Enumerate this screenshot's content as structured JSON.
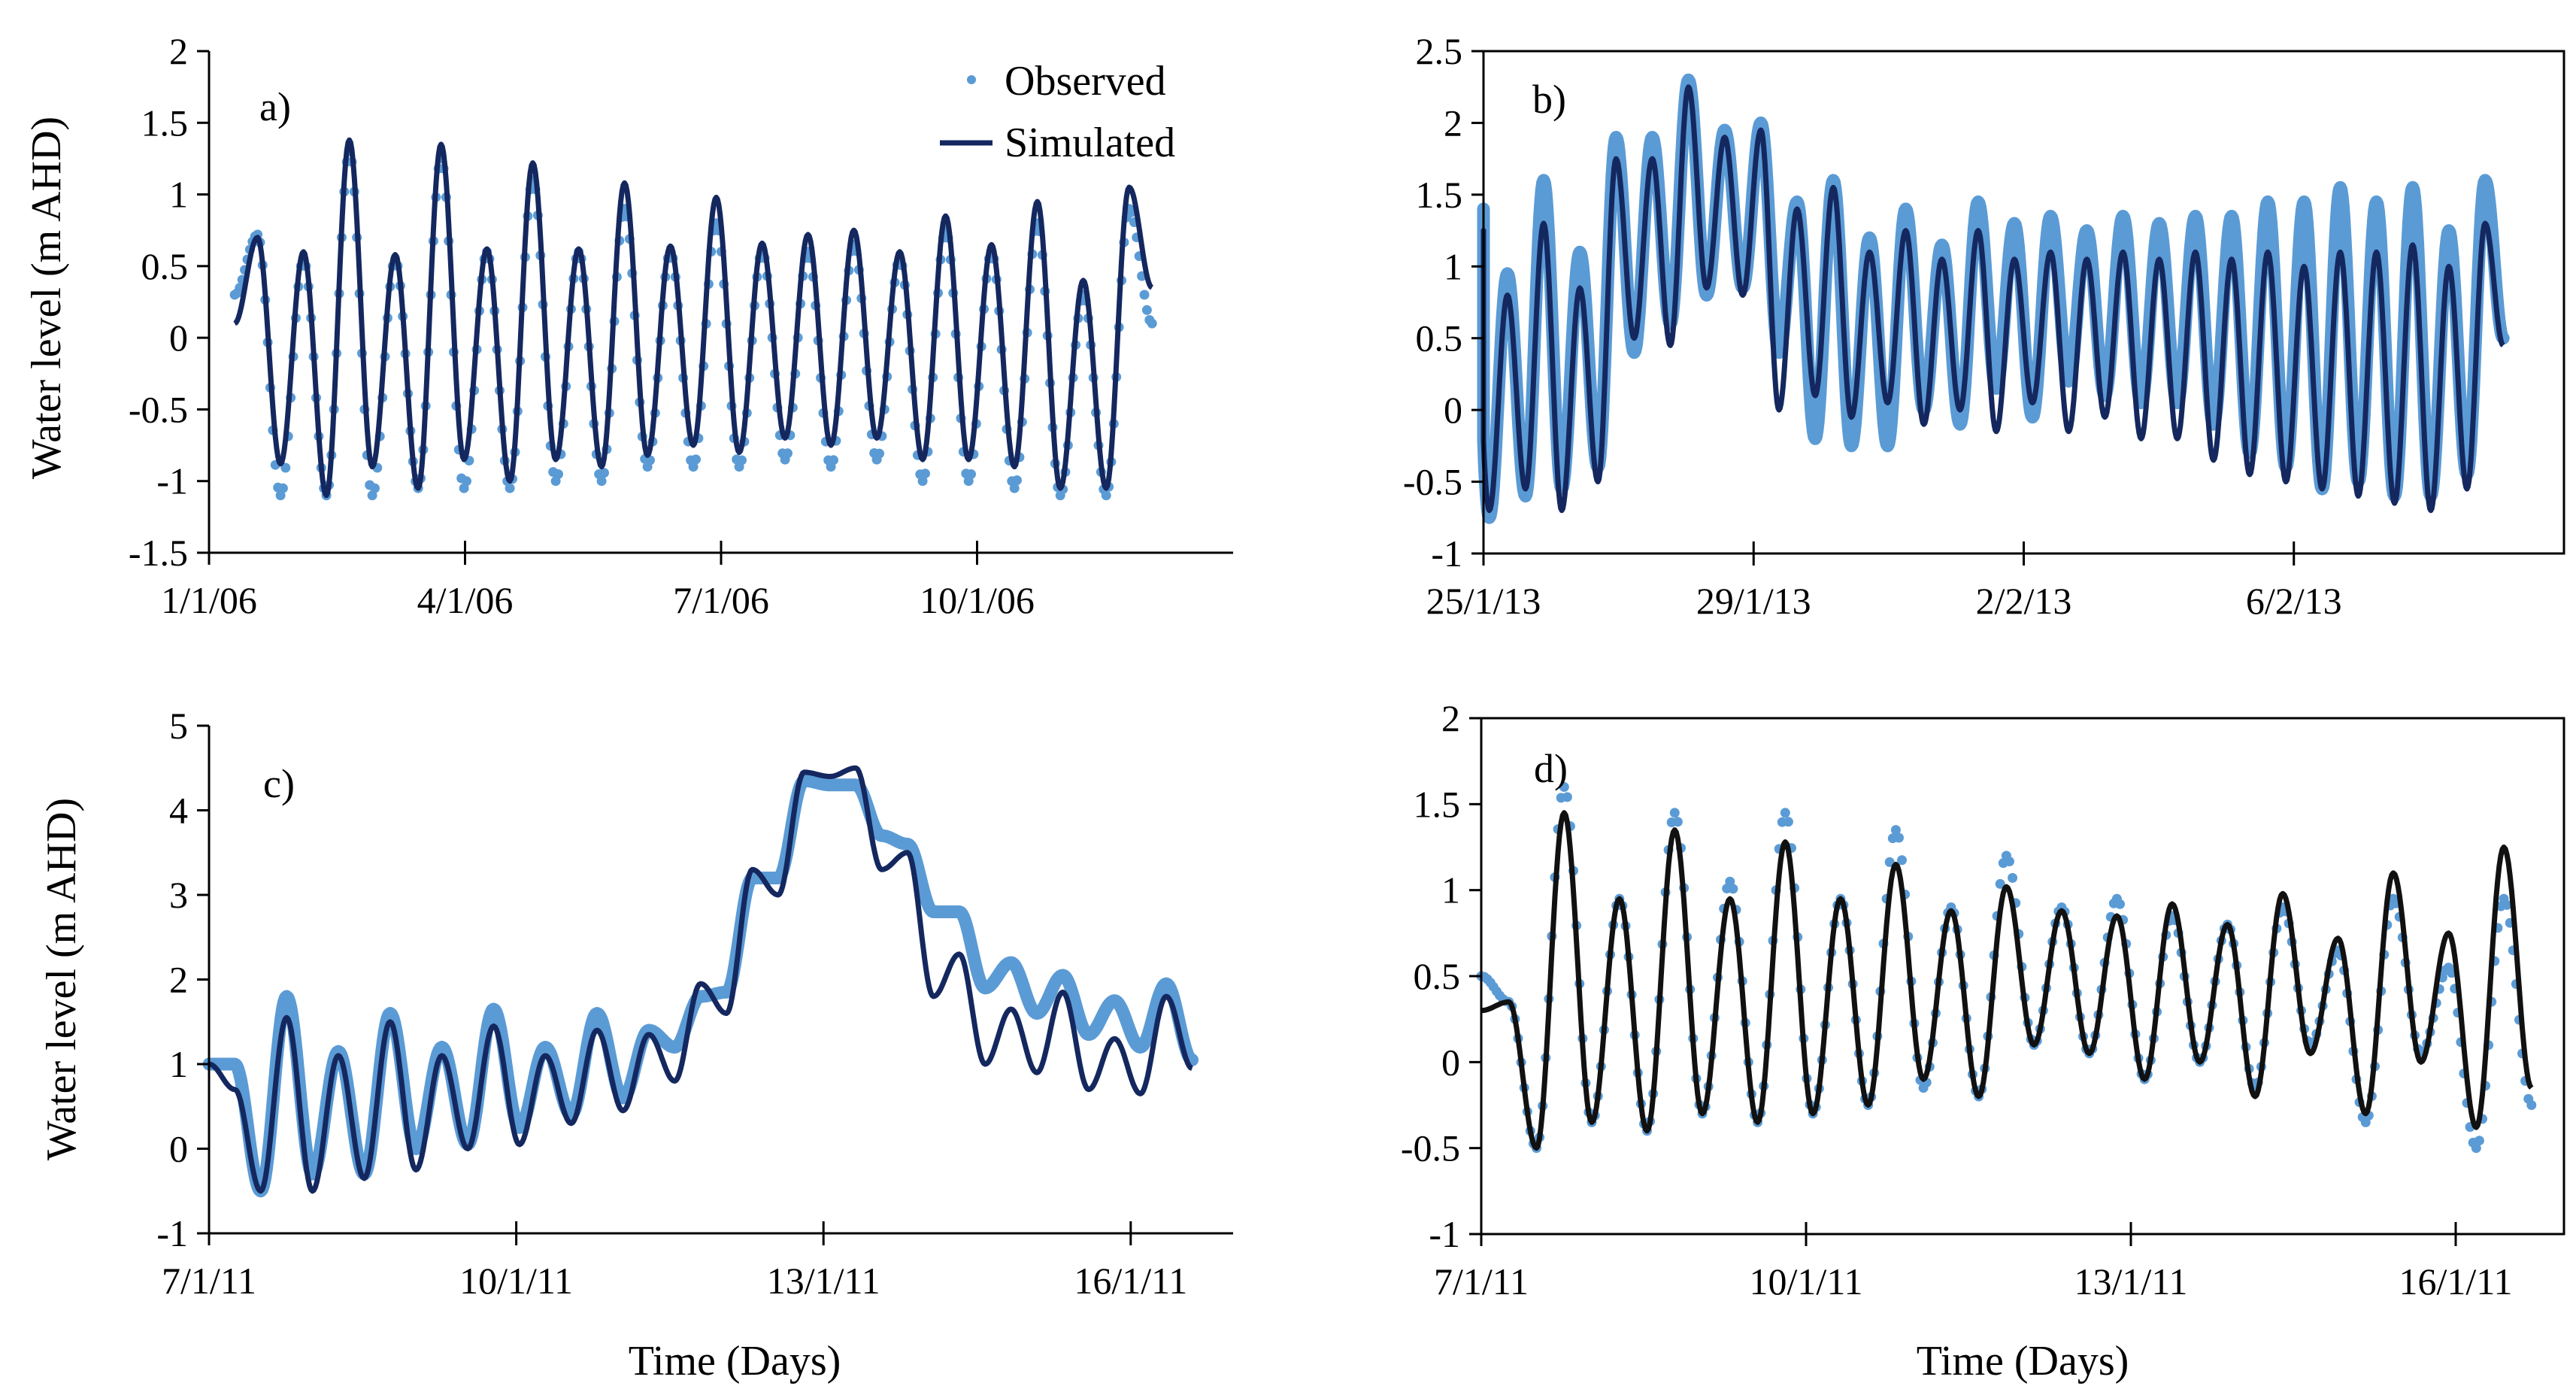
{
  "colors": {
    "observed": "#5b9bd5",
    "simulated": "#14285f",
    "simulated_d": "#111111",
    "axis": "#000000"
  },
  "legend": {
    "observed_label": "Observed",
    "simulated_label": "Simulated"
  },
  "chart_data": [
    {
      "id": "a",
      "type": "line",
      "panel_label": "a)",
      "title": "",
      "ylabel": "Water level (m  AHD)",
      "xlabel": "",
      "ylim": [
        -1.5,
        2
      ],
      "yticks": [
        "2",
        "1.5",
        "1",
        "0.5",
        "0",
        "-0.5",
        "-1",
        "-1.5"
      ],
      "xlim": [
        0,
        12
      ],
      "xticks": [
        {
          "value": 0,
          "label": "1/1/06"
        },
        {
          "value": 3,
          "label": "4/1/06"
        },
        {
          "value": 6,
          "label": "7/1/06"
        },
        {
          "value": 9,
          "label": "10/1/06"
        }
      ],
      "x_range": [
        0.3,
        11.05
      ],
      "series": [
        {
          "name": "Simulated",
          "style": "line",
          "peaks": [
            0.7,
            0.6,
            1.38,
            0.58,
            1.35,
            0.62,
            1.22,
            0.62,
            1.08,
            0.64,
            0.98,
            0.66,
            0.72,
            0.75,
            0.6,
            0.85,
            0.65,
            0.95,
            0.4,
            1.05
          ],
          "troughs": [
            0.1,
            -0.88,
            -1.1,
            -0.9,
            -1.05,
            -0.85,
            -1.0,
            -0.85,
            -0.9,
            -0.82,
            -0.75,
            -0.8,
            -0.7,
            -0.75,
            -0.7,
            -0.85,
            -0.85,
            -0.9,
            -1.05,
            -1.05,
            0.35
          ]
        },
        {
          "name": "Observed",
          "style": "points",
          "peaks": [
            0.72,
            0.55,
            1.3,
            0.55,
            1.25,
            0.6,
            1.1,
            0.6,
            0.9,
            0.6,
            0.8,
            0.6,
            0.6,
            0.65,
            0.55,
            0.75,
            0.6,
            0.8,
            0.3,
            0.9
          ],
          "troughs": [
            0.3,
            -1.1,
            -1.1,
            -1.1,
            -1.05,
            -1.05,
            -1.05,
            -1.0,
            -1.0,
            -0.9,
            -0.9,
            -0.9,
            -0.85,
            -0.9,
            -0.85,
            -1.0,
            -1.0,
            -1.05,
            -1.1,
            -1.1,
            0.1
          ]
        }
      ]
    },
    {
      "id": "b",
      "type": "line",
      "panel_label": "b)",
      "title": "",
      "ylabel": "",
      "xlabel": "",
      "ylim": [
        -1,
        2.5
      ],
      "yticks": [
        "2.5",
        "2",
        "1.5",
        "1",
        "0.5",
        "0",
        "-0.5",
        "-1"
      ],
      "xlim": [
        0,
        16
      ],
      "xticks": [
        {
          "value": 0,
          "label": "25/1/13"
        },
        {
          "value": 4,
          "label": "29/1/13"
        },
        {
          "value": 8,
          "label": "2/2/13"
        },
        {
          "value": 12,
          "label": "6/2/13"
        }
      ],
      "x_range": [
        -0.45,
        15.1
      ],
      "series": [
        {
          "name": "Observed",
          "style": "band",
          "peaks": [
            1.4,
            0.95,
            1.6,
            1.1,
            1.9,
            1.9,
            2.3,
            1.95,
            2.0,
            1.45,
            1.6,
            1.2,
            1.4,
            1.15,
            1.45,
            1.3,
            1.35,
            1.25,
            1.35,
            1.3,
            1.35,
            1.35,
            1.45,
            1.45,
            1.55,
            1.45,
            1.55,
            1.25,
            1.6
          ],
          "troughs": [
            -0.2,
            -0.75,
            -0.6,
            -0.55,
            -0.4,
            0.4,
            0.6,
            0.8,
            0.85,
            0.4,
            -0.2,
            -0.25,
            -0.25,
            0.0,
            -0.1,
            0.15,
            -0.05,
            0.2,
            0.1,
            0.05,
            0.05,
            -0.1,
            -0.3,
            -0.4,
            -0.55,
            -0.5,
            -0.6,
            -0.6,
            -0.45,
            0.5
          ]
        },
        {
          "name": "Simulated",
          "style": "line",
          "peaks": [
            1.25,
            0.8,
            1.3,
            0.85,
            1.75,
            1.75,
            2.25,
            1.9,
            1.95,
            1.4,
            1.55,
            1.1,
            1.25,
            1.05,
            1.25,
            1.05,
            1.1,
            1.05,
            1.1,
            1.05,
            1.1,
            1.05,
            1.1,
            1.0,
            1.1,
            1.1,
            1.15,
            1.0,
            1.3
          ],
          "troughs": [
            -0.15,
            -0.7,
            -0.55,
            -0.7,
            -0.5,
            0.5,
            0.45,
            0.85,
            0.8,
            0.0,
            0.1,
            -0.05,
            0.05,
            -0.1,
            0.0,
            -0.15,
            0.05,
            -0.15,
            -0.05,
            -0.2,
            -0.2,
            -0.35,
            -0.45,
            -0.5,
            -0.55,
            -0.6,
            -0.65,
            -0.7,
            -0.55,
            0.45
          ]
        }
      ]
    },
    {
      "id": "c",
      "type": "line",
      "panel_label": "c)",
      "title": "",
      "ylabel": "Water level (m AHD)",
      "xlabel": "Time (Days)",
      "ylim": [
        -1,
        5
      ],
      "yticks": [
        "5",
        "4",
        "3",
        "2",
        "1",
        "0",
        "-1"
      ],
      "xlim": [
        0,
        10
      ],
      "xticks": [
        {
          "value": 0,
          "label": "7/1/11"
        },
        {
          "value": 3,
          "label": "10/1/11"
        },
        {
          "value": 6,
          "label": "13/1/11"
        },
        {
          "value": 9,
          "label": "16/1/11"
        }
      ],
      "x_range": [
        0.0,
        9.6
      ],
      "series": [
        {
          "name": "Observed",
          "style": "band",
          "peaks": [
            1.0,
            1.8,
            1.15,
            1.6,
            1.2,
            1.65,
            1.2,
            1.6,
            1.4,
            1.8,
            3.2,
            4.35,
            4.3,
            3.6,
            2.8,
            2.2,
            2.05,
            1.75,
            1.95
          ],
          "troughs": [
            1.0,
            -0.5,
            -0.3,
            -0.3,
            0.0,
            0.05,
            0.25,
            0.4,
            0.6,
            1.2,
            1.85,
            3.2,
            4.3,
            3.7,
            2.8,
            1.9,
            1.6,
            1.35,
            1.2,
            1.05
          ]
        },
        {
          "name": "Simulated",
          "style": "line",
          "peaks": [
            0.7,
            1.55,
            1.1,
            1.5,
            1.1,
            1.45,
            1.1,
            1.4,
            1.35,
            1.95,
            3.3,
            4.45,
            4.5,
            3.5,
            2.3,
            1.65,
            1.85,
            1.3,
            1.8
          ],
          "troughs": [
            1.0,
            -0.5,
            -0.5,
            -0.35,
            -0.25,
            0.0,
            0.05,
            0.3,
            0.45,
            0.8,
            1.6,
            3.0,
            4.4,
            3.3,
            1.8,
            1.0,
            0.9,
            0.7,
            0.65,
            0.95
          ]
        }
      ]
    },
    {
      "id": "d",
      "type": "line",
      "panel_label": "d)",
      "title": "",
      "ylabel": "",
      "xlabel": "Time (Days)",
      "ylim": [
        -1,
        2
      ],
      "yticks": [
        "2",
        "1.5",
        "1",
        "0.5",
        "0",
        "-0.5",
        "-1"
      ],
      "xlim": [
        0,
        10
      ],
      "xticks": [
        {
          "value": 0,
          "label": "7/1/11"
        },
        {
          "value": 3,
          "label": "10/1/11"
        },
        {
          "value": 6,
          "label": "13/1/11"
        },
        {
          "value": 9,
          "label": "16/1/11"
        }
      ],
      "x_range": [
        0.0,
        9.7
      ],
      "series": [
        {
          "name": "Observed",
          "style": "points",
          "peaks": [
            0.35,
            1.6,
            0.95,
            1.45,
            1.05,
            1.45,
            0.95,
            1.35,
            0.9,
            1.2,
            0.9,
            0.95,
            0.85,
            0.8,
            0.9,
            0.65,
            0.95,
            0.55,
            0.95
          ],
          "troughs": [
            0.5,
            -0.5,
            -0.35,
            -0.4,
            -0.3,
            -0.35,
            -0.3,
            -0.25,
            -0.15,
            -0.2,
            0.1,
            0.05,
            -0.1,
            0.0,
            -0.15,
            0.1,
            -0.35,
            0.05,
            -0.5,
            -0.25
          ]
        },
        {
          "name": "Simulated",
          "style": "line",
          "peaks": [
            0.35,
            1.45,
            0.95,
            1.35,
            0.95,
            1.28,
            0.95,
            1.15,
            0.88,
            1.02,
            0.88,
            0.85,
            0.92,
            0.8,
            0.98,
            0.72,
            1.1,
            0.75,
            1.25
          ],
          "troughs": [
            0.3,
            -0.5,
            -0.35,
            -0.4,
            -0.3,
            -0.35,
            -0.3,
            -0.25,
            -0.1,
            -0.2,
            0.1,
            0.05,
            -0.1,
            0.0,
            -0.2,
            0.05,
            -0.3,
            0.0,
            -0.38,
            -0.15
          ]
        }
      ]
    }
  ]
}
